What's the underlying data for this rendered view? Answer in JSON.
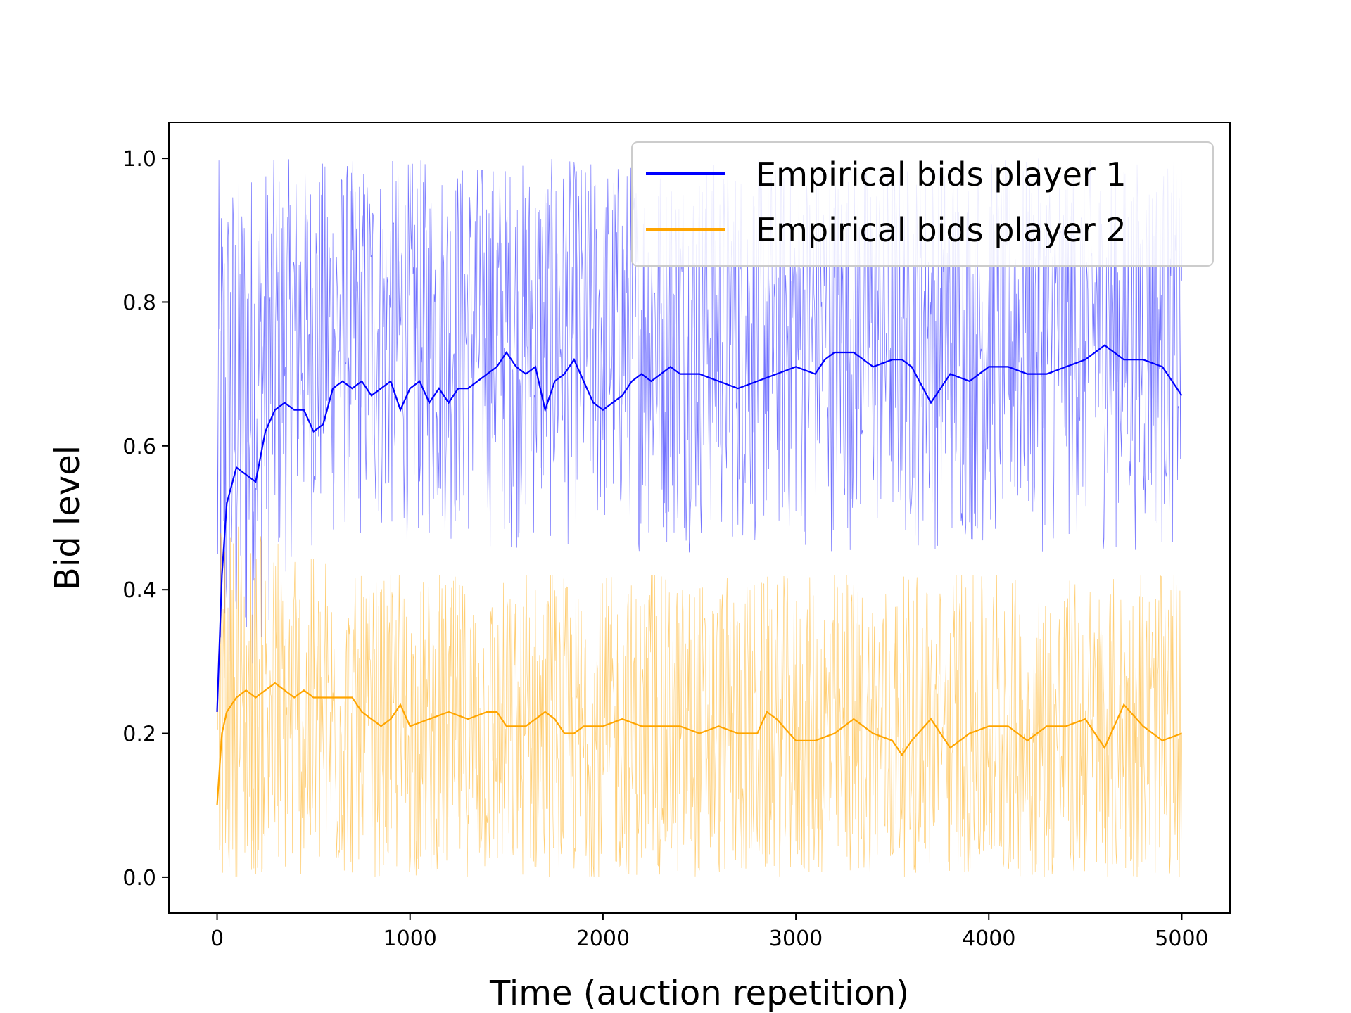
{
  "chart_data": {
    "type": "line",
    "title": "",
    "xlabel": "Time (auction repetition)",
    "ylabel": "Bid level",
    "xlim": [
      -250,
      5250
    ],
    "ylim": [
      -0.05,
      1.05
    ],
    "xticks": [
      0,
      1000,
      2000,
      3000,
      4000,
      5000
    ],
    "xtick_labels": [
      "0",
      "1000",
      "2000",
      "3000",
      "4000",
      "5000"
    ],
    "yticks": [
      0.0,
      0.2,
      0.4,
      0.6,
      0.8,
      1.0
    ],
    "ytick_labels": [
      "0.0",
      "0.2",
      "0.4",
      "0.6",
      "0.8",
      "1.0"
    ],
    "grid": false,
    "legend_position": "top-right",
    "legend": [
      "Empirical bids player 1",
      "Empirical bids player 2"
    ],
    "series": [
      {
        "name": "Empirical bids player 1",
        "color": "#0000ff",
        "raw_band": {
          "low": 0.45,
          "high": 1.0,
          "start_low": 0.1
        },
        "running_avg": {
          "x": [
            0,
            25,
            50,
            100,
            150,
            200,
            250,
            300,
            350,
            400,
            450,
            500,
            550,
            600,
            650,
            700,
            750,
            800,
            850,
            900,
            950,
            1000,
            1050,
            1100,
            1150,
            1200,
            1250,
            1300,
            1350,
            1400,
            1450,
            1500,
            1550,
            1600,
            1650,
            1700,
            1750,
            1800,
            1850,
            1900,
            1950,
            2000,
            2050,
            2100,
            2150,
            2200,
            2250,
            2300,
            2350,
            2400,
            2500,
            2600,
            2700,
            2800,
            2900,
            3000,
            3100,
            3150,
            3200,
            3300,
            3400,
            3500,
            3550,
            3600,
            3700,
            3800,
            3900,
            4000,
            4100,
            4200,
            4300,
            4400,
            4500,
            4550,
            4600,
            4700,
            4800,
            4900,
            5000
          ],
          "y": [
            0.23,
            0.42,
            0.52,
            0.57,
            0.56,
            0.55,
            0.62,
            0.65,
            0.66,
            0.65,
            0.65,
            0.62,
            0.63,
            0.68,
            0.69,
            0.68,
            0.69,
            0.67,
            0.68,
            0.69,
            0.65,
            0.68,
            0.69,
            0.66,
            0.68,
            0.66,
            0.68,
            0.68,
            0.69,
            0.7,
            0.71,
            0.73,
            0.71,
            0.7,
            0.71,
            0.65,
            0.69,
            0.7,
            0.72,
            0.69,
            0.66,
            0.65,
            0.66,
            0.67,
            0.69,
            0.7,
            0.69,
            0.7,
            0.71,
            0.7,
            0.7,
            0.69,
            0.68,
            0.69,
            0.7,
            0.71,
            0.7,
            0.72,
            0.73,
            0.73,
            0.71,
            0.72,
            0.72,
            0.71,
            0.66,
            0.7,
            0.69,
            0.71,
            0.71,
            0.7,
            0.7,
            0.71,
            0.72,
            0.73,
            0.74,
            0.72,
            0.72,
            0.71,
            0.67
          ]
        }
      },
      {
        "name": "Empirical bids player 2",
        "color": "#ffa500",
        "raw_band": {
          "low": 0.0,
          "high": 0.42,
          "start_high": 0.5
        },
        "running_avg": {
          "x": [
            0,
            25,
            50,
            100,
            150,
            200,
            250,
            300,
            350,
            400,
            450,
            500,
            600,
            700,
            750,
            800,
            850,
            900,
            950,
            1000,
            1100,
            1200,
            1300,
            1400,
            1450,
            1500,
            1600,
            1700,
            1750,
            1800,
            1850,
            1900,
            2000,
            2100,
            2200,
            2300,
            2400,
            2500,
            2600,
            2700,
            2800,
            2850,
            2900,
            3000,
            3100,
            3200,
            3300,
            3400,
            3500,
            3550,
            3600,
            3700,
            3800,
            3900,
            4000,
            4100,
            4200,
            4300,
            4400,
            4500,
            4600,
            4700,
            4800,
            4900,
            5000
          ],
          "y": [
            0.1,
            0.2,
            0.23,
            0.25,
            0.26,
            0.25,
            0.26,
            0.27,
            0.26,
            0.25,
            0.26,
            0.25,
            0.25,
            0.25,
            0.23,
            0.22,
            0.21,
            0.22,
            0.24,
            0.21,
            0.22,
            0.23,
            0.22,
            0.23,
            0.23,
            0.21,
            0.21,
            0.23,
            0.22,
            0.2,
            0.2,
            0.21,
            0.21,
            0.22,
            0.21,
            0.21,
            0.21,
            0.2,
            0.21,
            0.2,
            0.2,
            0.23,
            0.22,
            0.19,
            0.19,
            0.2,
            0.22,
            0.2,
            0.19,
            0.17,
            0.19,
            0.22,
            0.18,
            0.2,
            0.21,
            0.21,
            0.19,
            0.21,
            0.21,
            0.22,
            0.18,
            0.24,
            0.21,
            0.19,
            0.2
          ]
        }
      }
    ]
  }
}
